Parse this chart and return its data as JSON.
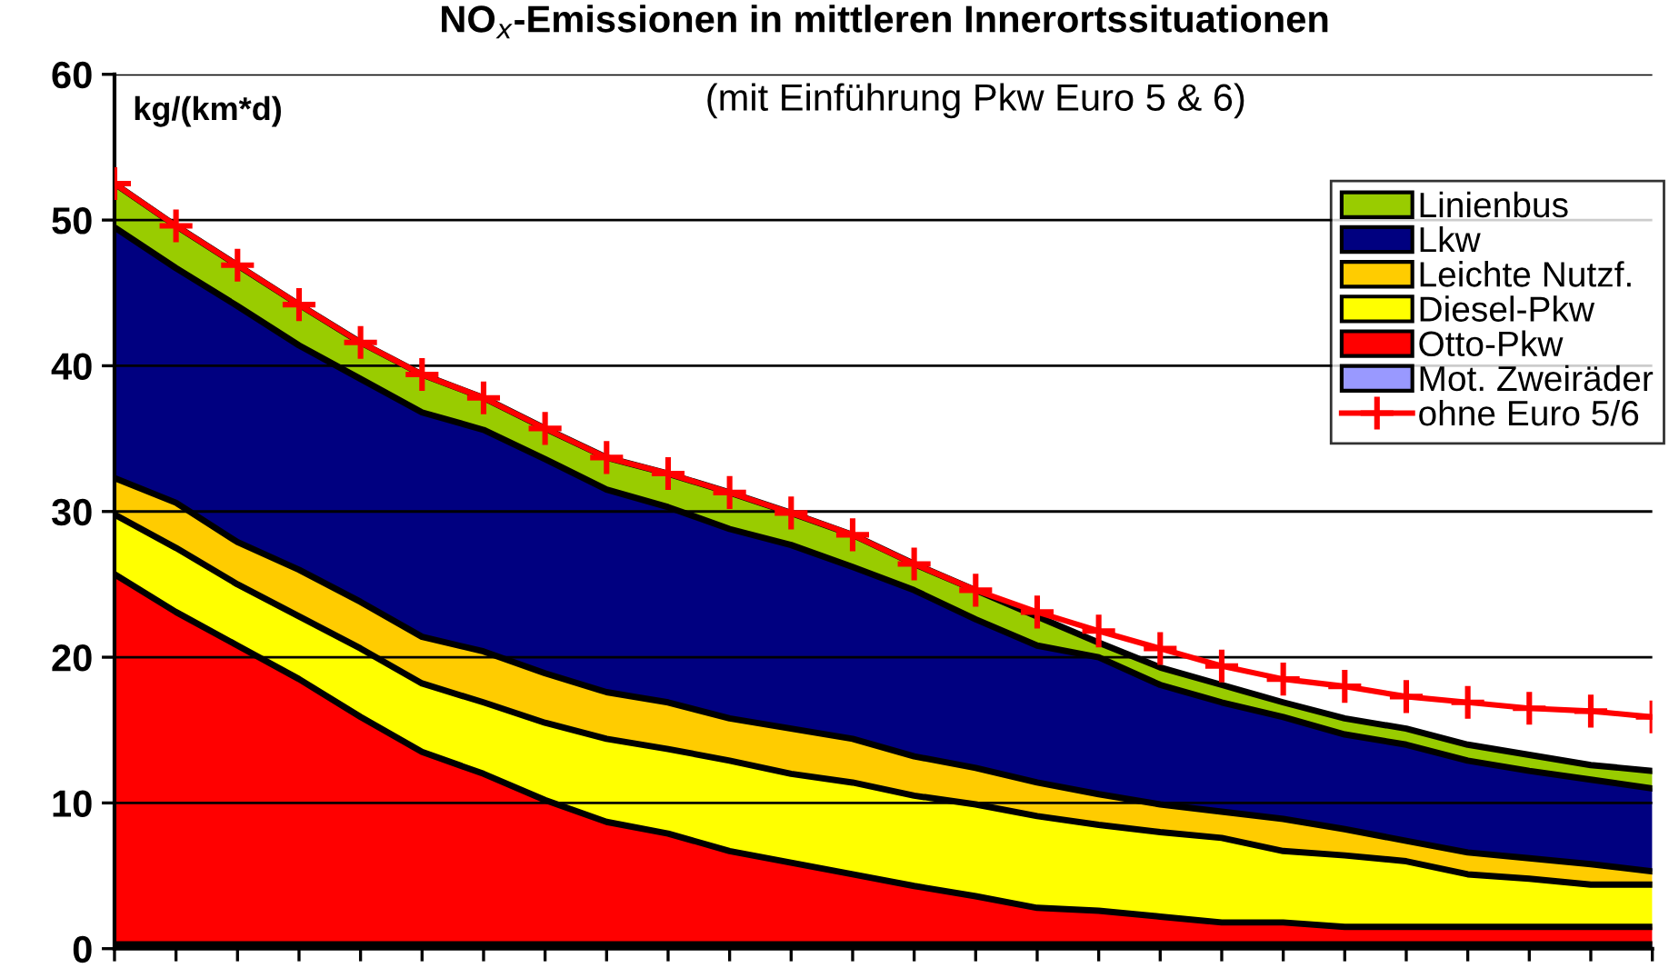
{
  "chart_data": {
    "type": "area",
    "stacked": true,
    "title": "NO$_{x}$-Emissionen in mittleren Innerortssituationen",
    "subtitle": "(mit Einführung Pkw Euro 5 & 6)",
    "ylabel": "kg/(km*d)",
    "categories": [
      null,
      null,
      null,
      null,
      null,
      null,
      null,
      null,
      null,
      null,
      null,
      null,
      null,
      null,
      null,
      null,
      null,
      null,
      null,
      null,
      null,
      null,
      null,
      null,
      null,
      null
    ],
    "ylim": [
      0,
      60
    ],
    "yticks": [
      0,
      10,
      20,
      30,
      40,
      50,
      60
    ],
    "grid": "y",
    "legend": "top right",
    "tick_labels": "y",
    "series": [
      {
        "name": "Mot. Zweiräder",
        "color": "#9999ff",
        "values": [
          0.3,
          0.3,
          0.3,
          0.3,
          0.3,
          0.3,
          0.3,
          0.3,
          0.3,
          0.3,
          0.3,
          0.3,
          0.3,
          0.3,
          0.3,
          0.3,
          0.3,
          0.3,
          0.3,
          0.3,
          0.3,
          0.3,
          0.3,
          0.3,
          0.3,
          0.3
        ]
      },
      {
        "name": "Otto-Pkw",
        "color": "#ff0000",
        "values": [
          25.4,
          22.8,
          20.5,
          18.2,
          15.6,
          13.2,
          11.7,
          9.9,
          8.4,
          7.6,
          6.4,
          5.6,
          4.8,
          4.0,
          3.3,
          2.5,
          2.3,
          1.9,
          1.5,
          1.5,
          1.2,
          1.2,
          1.2,
          1.2,
          1.2,
          1.2
        ]
      },
      {
        "name": "Diesel-Pkw",
        "color": "#ffff00",
        "values": [
          4.1,
          4.4,
          4.2,
          4.3,
          4.7,
          4.7,
          4.9,
          5.3,
          5.7,
          5.8,
          6.2,
          6.1,
          6.3,
          6.2,
          6.3,
          6.3,
          5.9,
          5.8,
          5.8,
          4.9,
          4.9,
          4.5,
          3.6,
          3.3,
          2.9,
          2.9
        ]
      },
      {
        "name": "Leichte Nutzf.",
        "color": "#ffcc00",
        "values": [
          2.5,
          3.1,
          2.9,
          3.2,
          3.2,
          3.2,
          3.5,
          3.4,
          3.2,
          3.2,
          2.9,
          3.1,
          3.0,
          2.7,
          2.5,
          2.3,
          2.1,
          1.9,
          1.8,
          2.2,
          1.8,
          1.4,
          1.5,
          1.4,
          1.4,
          0.9
        ]
      },
      {
        "name": "Lkw",
        "color": "#000080",
        "values": [
          17.2,
          16.1,
          16.2,
          15.4,
          15.3,
          15.4,
          15.2,
          14.7,
          13.9,
          13.4,
          13.0,
          12.6,
          11.8,
          11.4,
          10.2,
          9.4,
          9.4,
          8.2,
          7.5,
          7.0,
          6.5,
          6.6,
          6.3,
          6.0,
          5.8,
          5.7
        ]
      },
      {
        "name": "Linienbus",
        "color": "#99cc00",
        "values": [
          3.0,
          2.9,
          2.8,
          2.8,
          2.5,
          2.6,
          2.2,
          2.1,
          2.2,
          2.3,
          2.5,
          2.2,
          2.2,
          1.8,
          2.0,
          2.0,
          1.0,
          1.2,
          1.2,
          1.0,
          1.1,
          1.1,
          1.1,
          1.1,
          1.0,
          1.2
        ]
      },
      {
        "name": "ohne Euro 5/6",
        "type": "line",
        "marker": "cross",
        "line_style": "solid",
        "color": "#ff0000",
        "values": [
          52.5,
          49.6,
          46.9,
          44.2,
          41.6,
          39.4,
          37.8,
          35.7,
          33.7,
          32.6,
          31.3,
          29.9,
          28.4,
          26.4,
          24.6,
          23.1,
          21.8,
          20.6,
          19.4,
          18.5,
          18.0,
          17.3,
          16.9,
          16.5,
          16.3,
          15.9
        ]
      }
    ]
  }
}
